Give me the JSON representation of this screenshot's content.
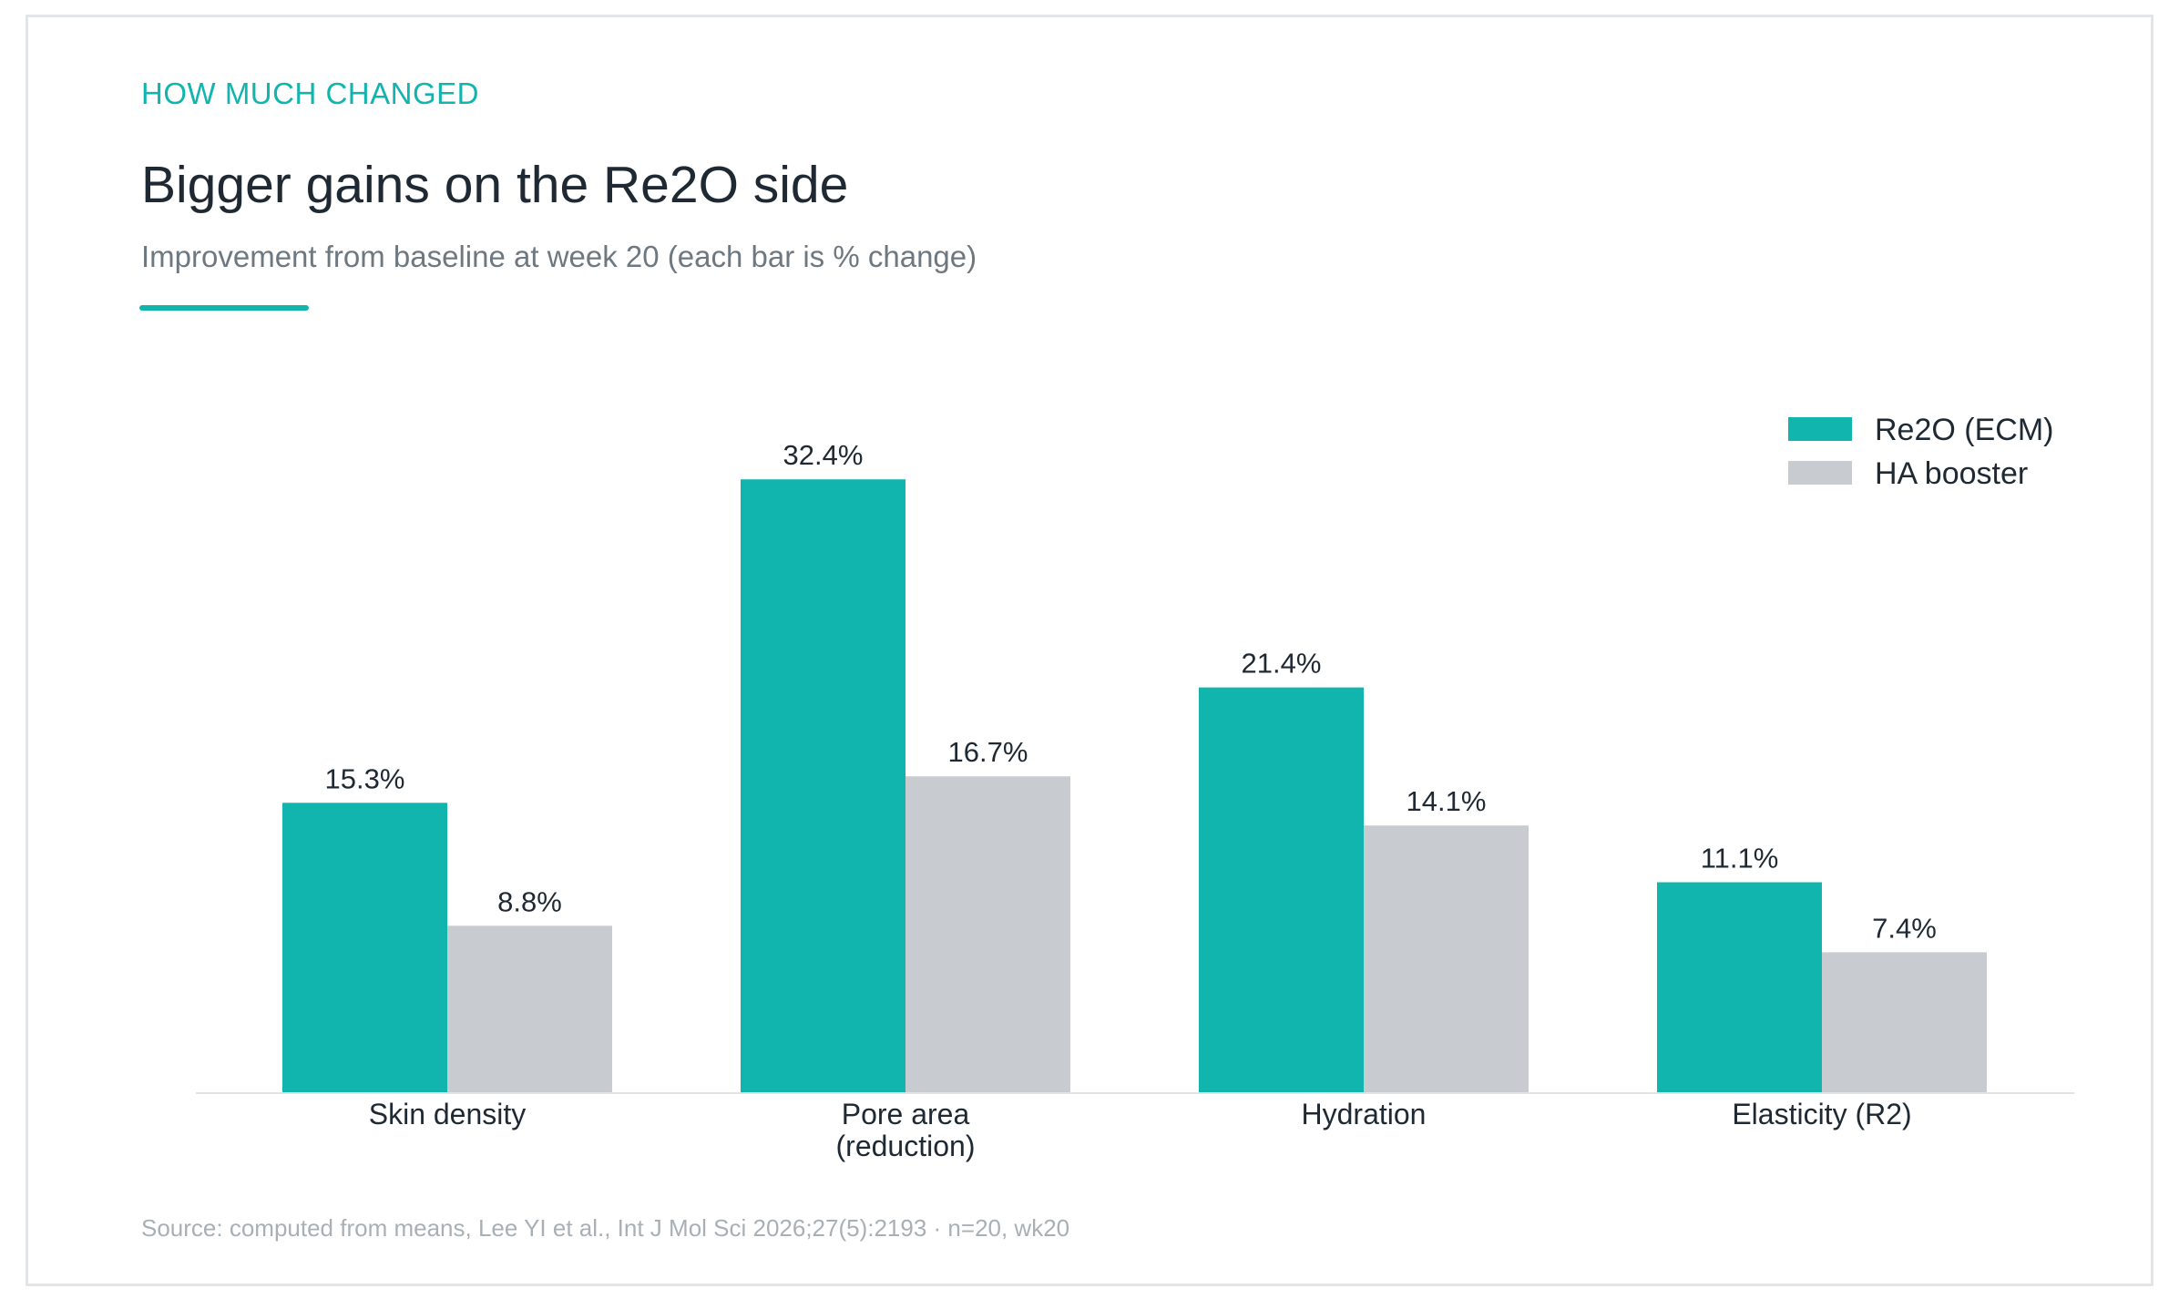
{
  "header": {
    "eyebrow": "HOW MUCH CHANGED",
    "title": "Bigger gains on the Re2O side",
    "subtitle": "Improvement from baseline at week 20 (each bar is % change)"
  },
  "footer": {
    "source": "Source: computed from means, Lee YI et al., Int J Mol Sci 2026;27(5):2193 · n=20, wk20"
  },
  "colors": {
    "accent": "#12b5ad",
    "secondary": "#c8ccd0"
  },
  "chart_data": {
    "type": "bar",
    "categories": [
      [
        "Skin density"
      ],
      [
        "Pore area",
        "(reduction)"
      ],
      [
        "Hydration"
      ],
      [
        "Elasticity (R2)"
      ]
    ],
    "series": [
      {
        "name": "Re2O (ECM)",
        "color": "#12b5ad",
        "values": [
          15.3,
          32.4,
          21.4,
          11.1
        ],
        "labels": [
          "15.3%",
          "32.4%",
          "21.4%",
          "11.1%"
        ]
      },
      {
        "name": "HA booster",
        "color": "#c8ccd0",
        "values": [
          8.8,
          16.7,
          14.1,
          7.4
        ],
        "labels": [
          "8.8%",
          "16.7%",
          "14.1%",
          "7.4%"
        ]
      }
    ],
    "ylim": [
      0,
      34
    ],
    "grid": false,
    "legend": "top-right"
  }
}
